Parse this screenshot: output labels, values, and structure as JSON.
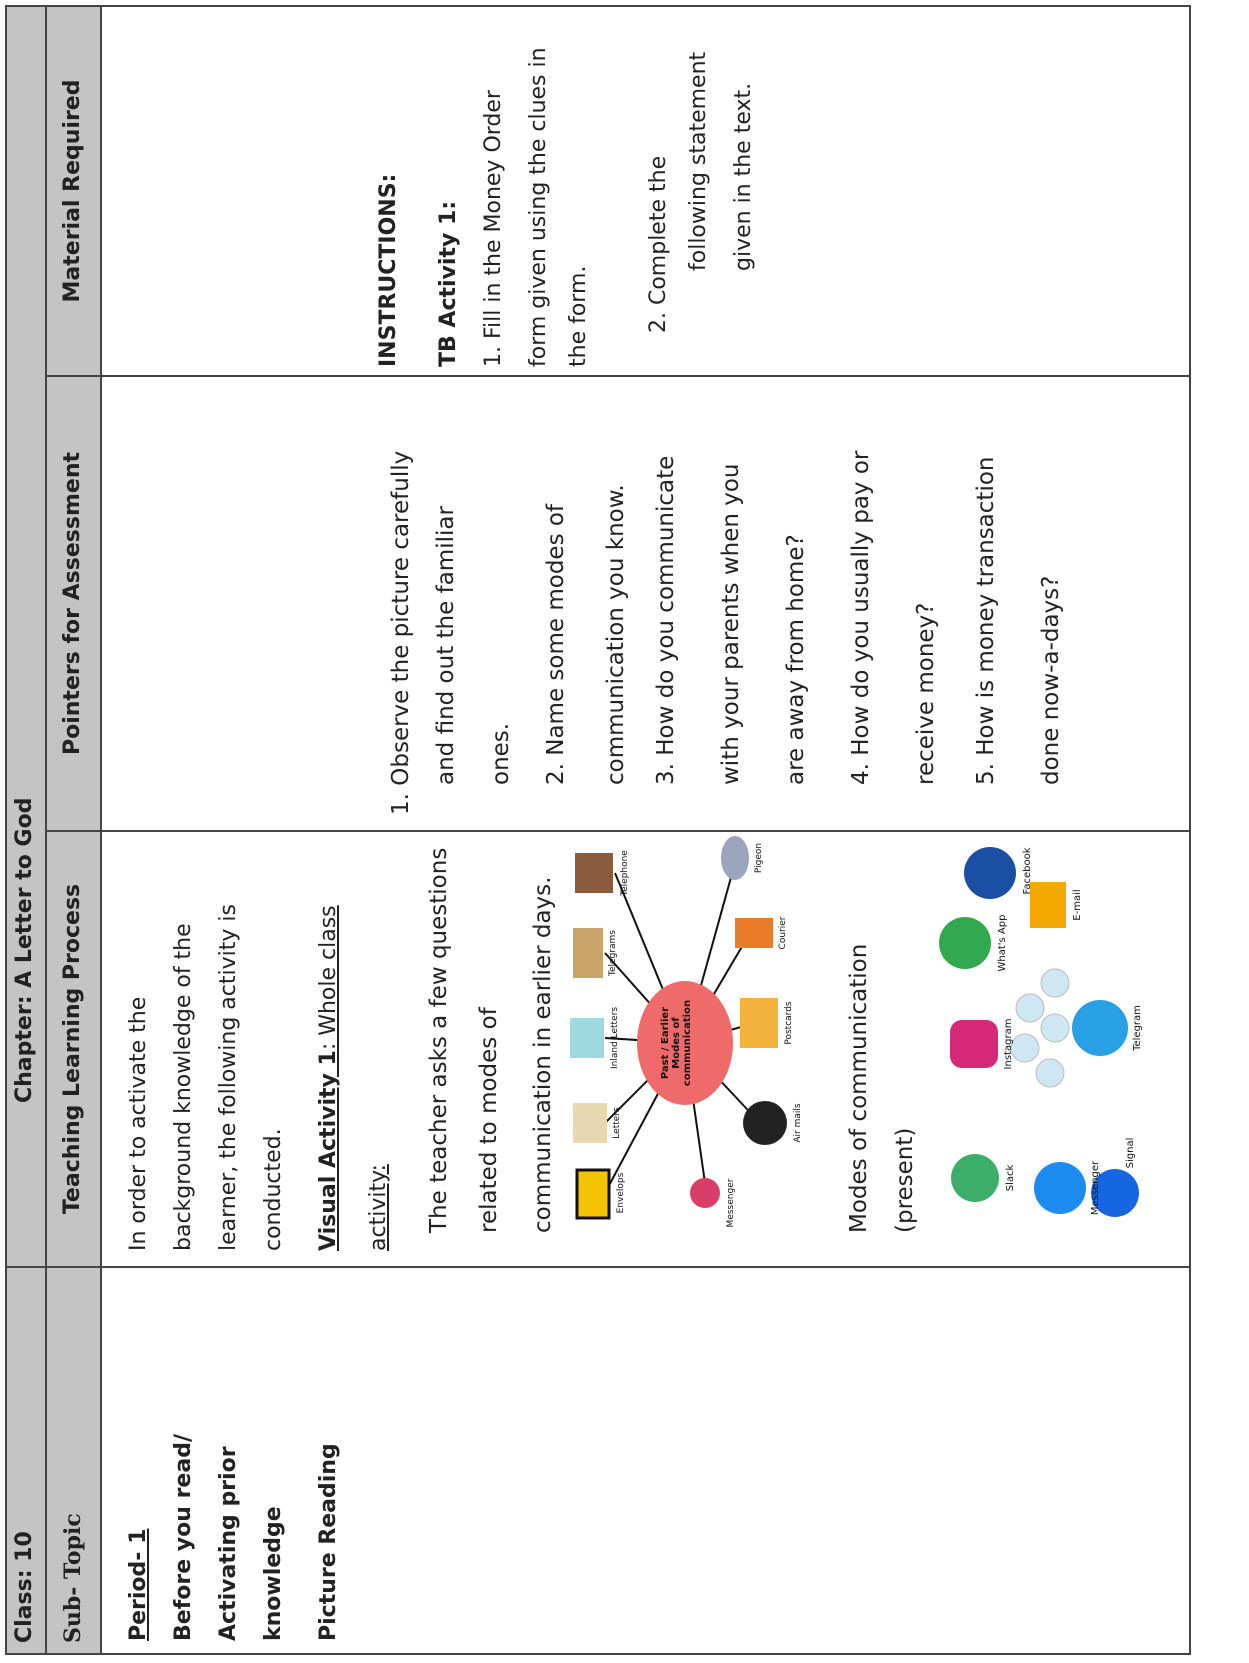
{
  "header": {
    "class": "Class: 10",
    "chapter": "Chapter: A Letter to God"
  },
  "columns": [
    "Sub- Topic",
    "Teaching Learning Process",
    "Pointers for Assessment",
    "Material Required"
  ],
  "subtopic": {
    "period": "Period- 1",
    "lines": [
      "Before you read/",
      "Activating prior",
      "knowledge"
    ],
    "picture_reading": "Picture Reading"
  },
  "teaching": {
    "intro": [
      "In order to activate the",
      "background knowledge of the",
      "learner, the following activity is",
      "conducted."
    ],
    "visual_activity_label": "Visual Activity 1",
    "visual_activity_rest": ": Whole class",
    "visual_activity_line2": "activity:",
    "teacher_text": [
      "The teacher asks a few questions",
      "related to modes of",
      "communication in earlier days."
    ],
    "diagram_past": {
      "center": "Past / Earlier Modes of communication",
      "labels": [
        "Envelops",
        "Letters",
        "Inland Letters",
        "Telegrams",
        "Telephone",
        "Messenger",
        "Air mails",
        "Postcards",
        "Courier",
        "Pigeon"
      ]
    },
    "present_label": [
      "Modes of communication",
      "(present)"
    ],
    "diagram_present": {
      "labels": [
        "Slack",
        "Instagram",
        "What's App",
        "Facebook",
        "E-mail",
        "Messenger",
        "Signal",
        "Telegram"
      ]
    }
  },
  "pointers": [
    "1.   Observe the picture carefully",
    "and find out the familiar",
    "ones.",
    "2. Name some modes of",
    "communication you know.",
    "3. How do you communicate",
    "with your parents when you",
    "are away from home?",
    "4. How do you usually pay or",
    "receive money?",
    "5. How is money transaction",
    "done now-a-days?"
  ],
  "material": {
    "instructions": "INSTRUCTIONS:",
    "activity": "TB Activity 1:",
    "item1": [
      "1. Fill in the Money Order",
      "form given using the clues in",
      "the form."
    ],
    "item2": [
      "2.   Complete the",
      "following statement",
      "given in the text."
    ]
  }
}
